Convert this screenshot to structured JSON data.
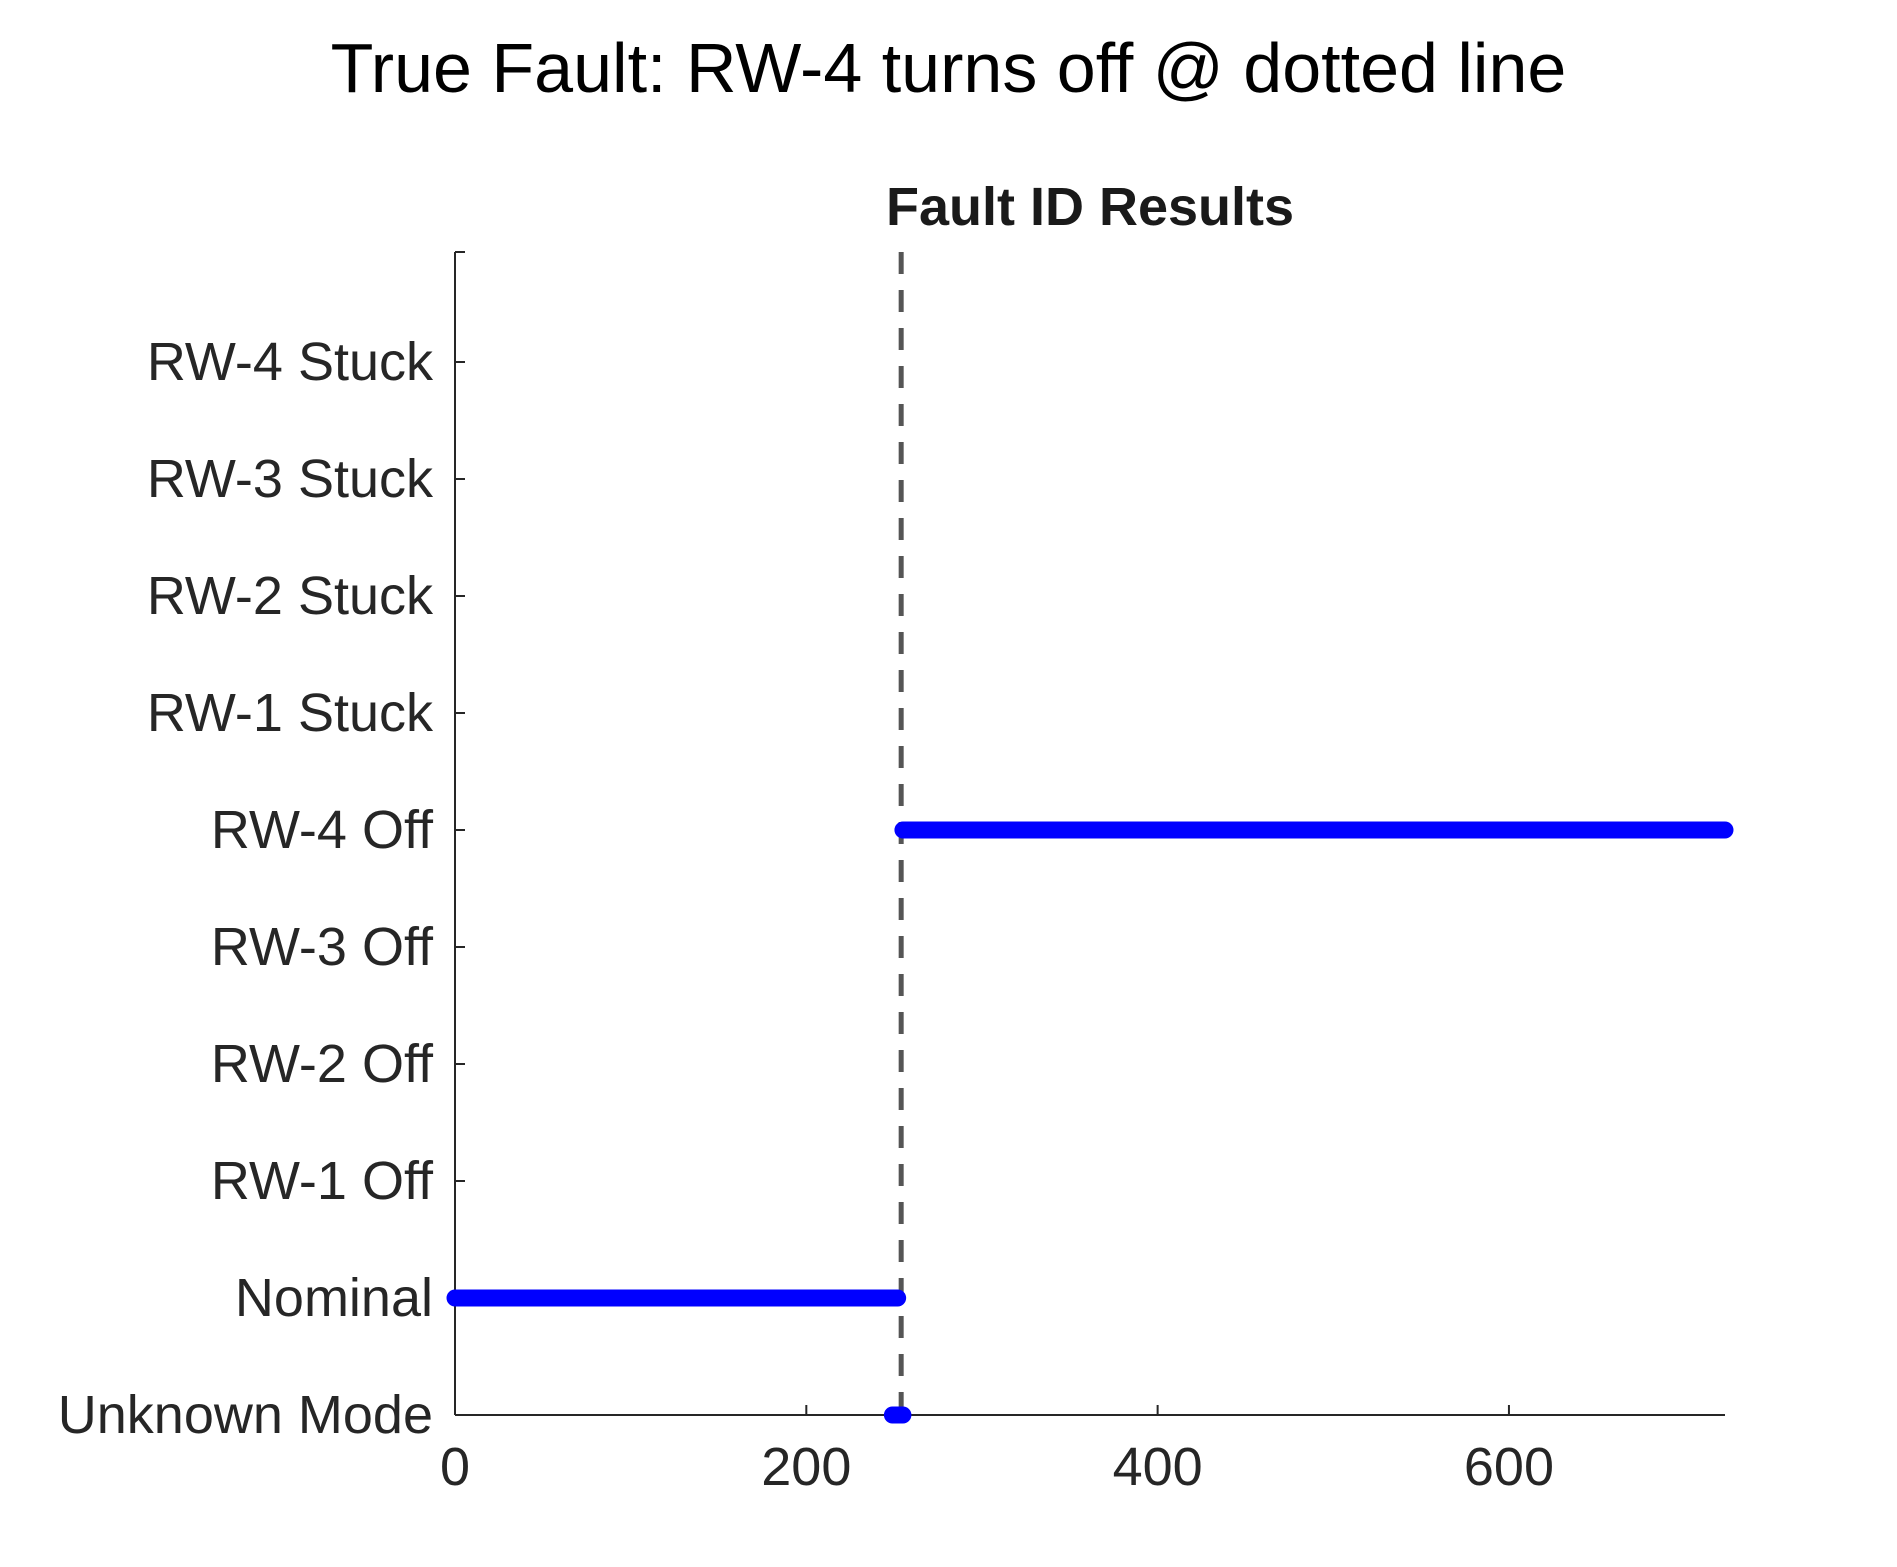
{
  "page": {
    "title": "True Fault: RW-4 turns off @ dotted line"
  },
  "chart_data": {
    "type": "line",
    "title": "Fault ID Results",
    "xlabel": "",
    "ylabel": "",
    "xlim": [
      0,
      723
    ],
    "x_ticks": [
      0,
      200,
      400,
      600
    ],
    "y_categories": [
      "Unknown Mode",
      "Nominal",
      "RW-1 Off",
      "RW-2 Off",
      "RW-3 Off",
      "RW-4 Off",
      "RW-1 Stuck",
      "RW-2 Stuck",
      "RW-3 Stuck",
      "RW-4 Stuck"
    ],
    "grid": false,
    "series": [
      {
        "color": "#0000ff",
        "segments": [
          {
            "category": "Nominal",
            "x_start": 0,
            "x_end": 252
          },
          {
            "category": "Unknown Mode",
            "x_start": 249,
            "x_end": 255
          },
          {
            "category": "RW-4 Off",
            "x_start": 255,
            "x_end": 723
          }
        ]
      }
    ],
    "annotations": [
      {
        "type": "vertical-dashed-line",
        "x": 254,
        "color": "#555555",
        "meaning": "fault onset"
      }
    ]
  }
}
